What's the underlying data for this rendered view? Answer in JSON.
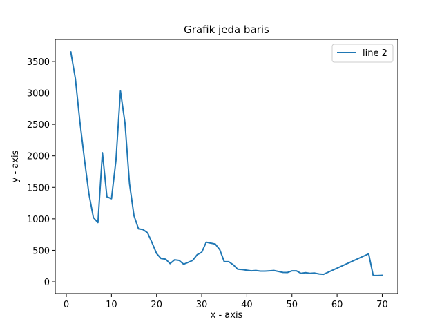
{
  "chart_data": {
    "type": "line",
    "title": "Grafik jeda baris",
    "xlabel": "x - axis",
    "ylabel": "y - axis",
    "xlim": [
      -2.45,
      73.45
    ],
    "ylim": [
      -186,
      3850
    ],
    "xticks": [
      0,
      10,
      20,
      30,
      40,
      50,
      60,
      70
    ],
    "yticks": [
      0,
      500,
      1000,
      1500,
      2000,
      2500,
      3000,
      3500
    ],
    "grid": false,
    "legend_position": "top-right",
    "series": [
      {
        "name": "line 2",
        "color": "#1f77b4",
        "x": [
          1,
          2,
          3,
          4,
          5,
          6,
          7,
          8,
          9,
          10,
          11,
          12,
          13,
          14,
          15,
          16,
          17,
          18,
          19,
          20,
          21,
          22,
          23,
          24,
          25,
          26,
          27,
          28,
          29,
          30,
          31,
          32,
          33,
          34,
          35,
          36,
          37,
          38,
          39,
          40,
          41,
          42,
          43,
          44,
          45,
          46,
          47,
          48,
          49,
          50,
          51,
          52,
          53,
          54,
          55,
          56,
          57,
          67,
          68,
          69,
          70
        ],
        "y": [
          3650,
          3230,
          2550,
          1950,
          1400,
          1020,
          940,
          2050,
          1350,
          1320,
          1930,
          3030,
          2520,
          1560,
          1050,
          840,
          830,
          780,
          620,
          450,
          370,
          360,
          290,
          350,
          340,
          280,
          310,
          340,
          430,
          470,
          630,
          615,
          600,
          510,
          320,
          320,
          270,
          200,
          195,
          185,
          175,
          180,
          170,
          170,
          175,
          180,
          165,
          150,
          148,
          175,
          175,
          135,
          145,
          135,
          140,
          125,
          120,
          445,
          100,
          100,
          105
        ]
      }
    ]
  }
}
